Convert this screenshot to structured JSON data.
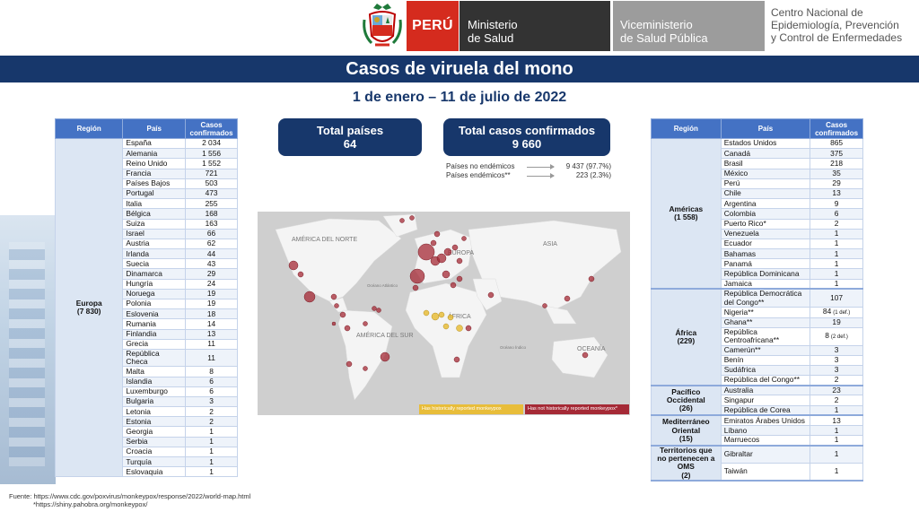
{
  "header": {
    "peru": "PERÚ",
    "minsa_l1": "Ministerio",
    "minsa_l2": "de Salud",
    "vice_l1": "Viceministerio",
    "vice_l2": "de Salud Pública",
    "cdc_l1": "Centro Nacional de",
    "cdc_l2": "Epidemiología, Prevención",
    "cdc_l3": "y Control de Enfermedades"
  },
  "title": "Casos de viruela del mono",
  "subtitle": "1 de enero – 11 de julio de 2022",
  "summary": {
    "countries_label": "Total países",
    "countries_value": "64",
    "cases_label": "Total casos confirmados",
    "cases_value": "9 660",
    "non_endemic_label": "Países no endémicos",
    "non_endemic_value": "9 437 (97.7%)",
    "endemic_label": "Países endémicos**",
    "endemic_value": "223 (2.3%)"
  },
  "left_table": {
    "headers": [
      "Región",
      "País",
      "Casos confirmados"
    ],
    "region": "Europa",
    "region_total": "(7 830)",
    "rows": [
      [
        "España",
        "2 034"
      ],
      [
        "Alemania",
        "1 556"
      ],
      [
        "Reino Unido",
        "1 552"
      ],
      [
        "Francia",
        "721"
      ],
      [
        "Países Bajos",
        "503"
      ],
      [
        "Portugal",
        "473"
      ],
      [
        "Italia",
        "255"
      ],
      [
        "Bélgica",
        "168"
      ],
      [
        "Suiza",
        "163"
      ],
      [
        "Israel",
        "66"
      ],
      [
        "Austria",
        "62"
      ],
      [
        "Irlanda",
        "44"
      ],
      [
        "Suecia",
        "43"
      ],
      [
        "Dinamarca",
        "29"
      ],
      [
        "Hungría",
        "24"
      ],
      [
        "Noruega",
        "19"
      ],
      [
        "Polonia",
        "19"
      ],
      [
        "Eslovenia",
        "18"
      ],
      [
        "Rumania",
        "14"
      ],
      [
        "Finlandia",
        "13"
      ],
      [
        "Grecia",
        "11"
      ],
      [
        "República Checa",
        "11"
      ],
      [
        "Malta",
        "8"
      ],
      [
        "Islandia",
        "6"
      ],
      [
        "Luxemburgo",
        "6"
      ],
      [
        "Bulgaria",
        "3"
      ],
      [
        "Letonia",
        "2"
      ],
      [
        "Estonia",
        "2"
      ],
      [
        "Georgia",
        "1"
      ],
      [
        "Serbia",
        "1"
      ],
      [
        "Croacia",
        "1"
      ],
      [
        "Turquía",
        "1"
      ],
      [
        "Eslovaquia",
        "1"
      ]
    ]
  },
  "right_table": {
    "headers": [
      "Región",
      "País",
      "Casos confirmados"
    ],
    "groups": [
      {
        "region": "Américas",
        "total": "(1 558)",
        "rows": [
          [
            "Estados Unidos",
            "865"
          ],
          [
            "Canadá",
            "375"
          ],
          [
            "Brasil",
            "218"
          ],
          [
            "México",
            "35"
          ],
          [
            "Perú",
            "29"
          ],
          [
            "Chile",
            "13"
          ],
          [
            "Argentina",
            "9"
          ],
          [
            "Colombia",
            "6"
          ],
          [
            "Puerto Rico*",
            "2"
          ],
          [
            "Venezuela",
            "1"
          ],
          [
            "Ecuador",
            "1"
          ],
          [
            "Bahamas",
            "1"
          ],
          [
            "Panamá",
            "1"
          ],
          [
            "República Dominicana",
            "1"
          ],
          [
            "Jamaica",
            "1"
          ]
        ]
      },
      {
        "region": "África",
        "total": "(229)",
        "rows": [
          [
            "República Democrática del Congo**",
            "107"
          ],
          [
            "Nigeria**",
            "84",
            "(1 def.)"
          ],
          [
            "Ghana**",
            "19"
          ],
          [
            "República Centroafricana**",
            "8",
            "(2 def.)"
          ],
          [
            "Camerún**",
            "3"
          ],
          [
            "Benín",
            "3"
          ],
          [
            "Sudáfrica",
            "3"
          ],
          [
            "República del Congo**",
            "2"
          ]
        ]
      },
      {
        "region": "Pacífico Occidental",
        "total": "(26)",
        "rows": [
          [
            "Australia",
            "23"
          ],
          [
            "Singapur",
            "2"
          ],
          [
            "República de Corea",
            "1"
          ]
        ]
      },
      {
        "region": "Mediterráneo Oriental",
        "total": "(15)",
        "rows": [
          [
            "Emiratos Árabes Unidos",
            "13"
          ],
          [
            "Líbano",
            "1"
          ],
          [
            "Marruecos",
            "1"
          ]
        ]
      },
      {
        "region": "Territorios que no pertenecen a OMS",
        "total": "(2)",
        "rows": [
          [
            "Gibraltar",
            "1"
          ],
          [
            "Taiwán",
            "1"
          ]
        ]
      }
    ]
  },
  "map": {
    "labels": [
      "AMÉRICA DEL NORTE",
      "EUROPA",
      "ASIA",
      "ÁFRICA",
      "AMÉRICA DEL SUR",
      "OCEANÍA",
      "Océano Atlántico",
      "Océano Índico"
    ],
    "legend_yellow": "Has historically reported monkeypox",
    "legend_red": "Has not historically reported monkeypox*",
    "colors": {
      "red": "#a52a36",
      "yellow": "#e8bd3a",
      "land": "#f2f2f2",
      "water": "#cfcfcf"
    }
  },
  "footer": {
    "line1": "Fuente:  https://www.cdc.gov/poxvirus/monkeypox/response/2022/world-map.html",
    "line2": "*https://shiny.pahobra.org/monkeypox/"
  }
}
